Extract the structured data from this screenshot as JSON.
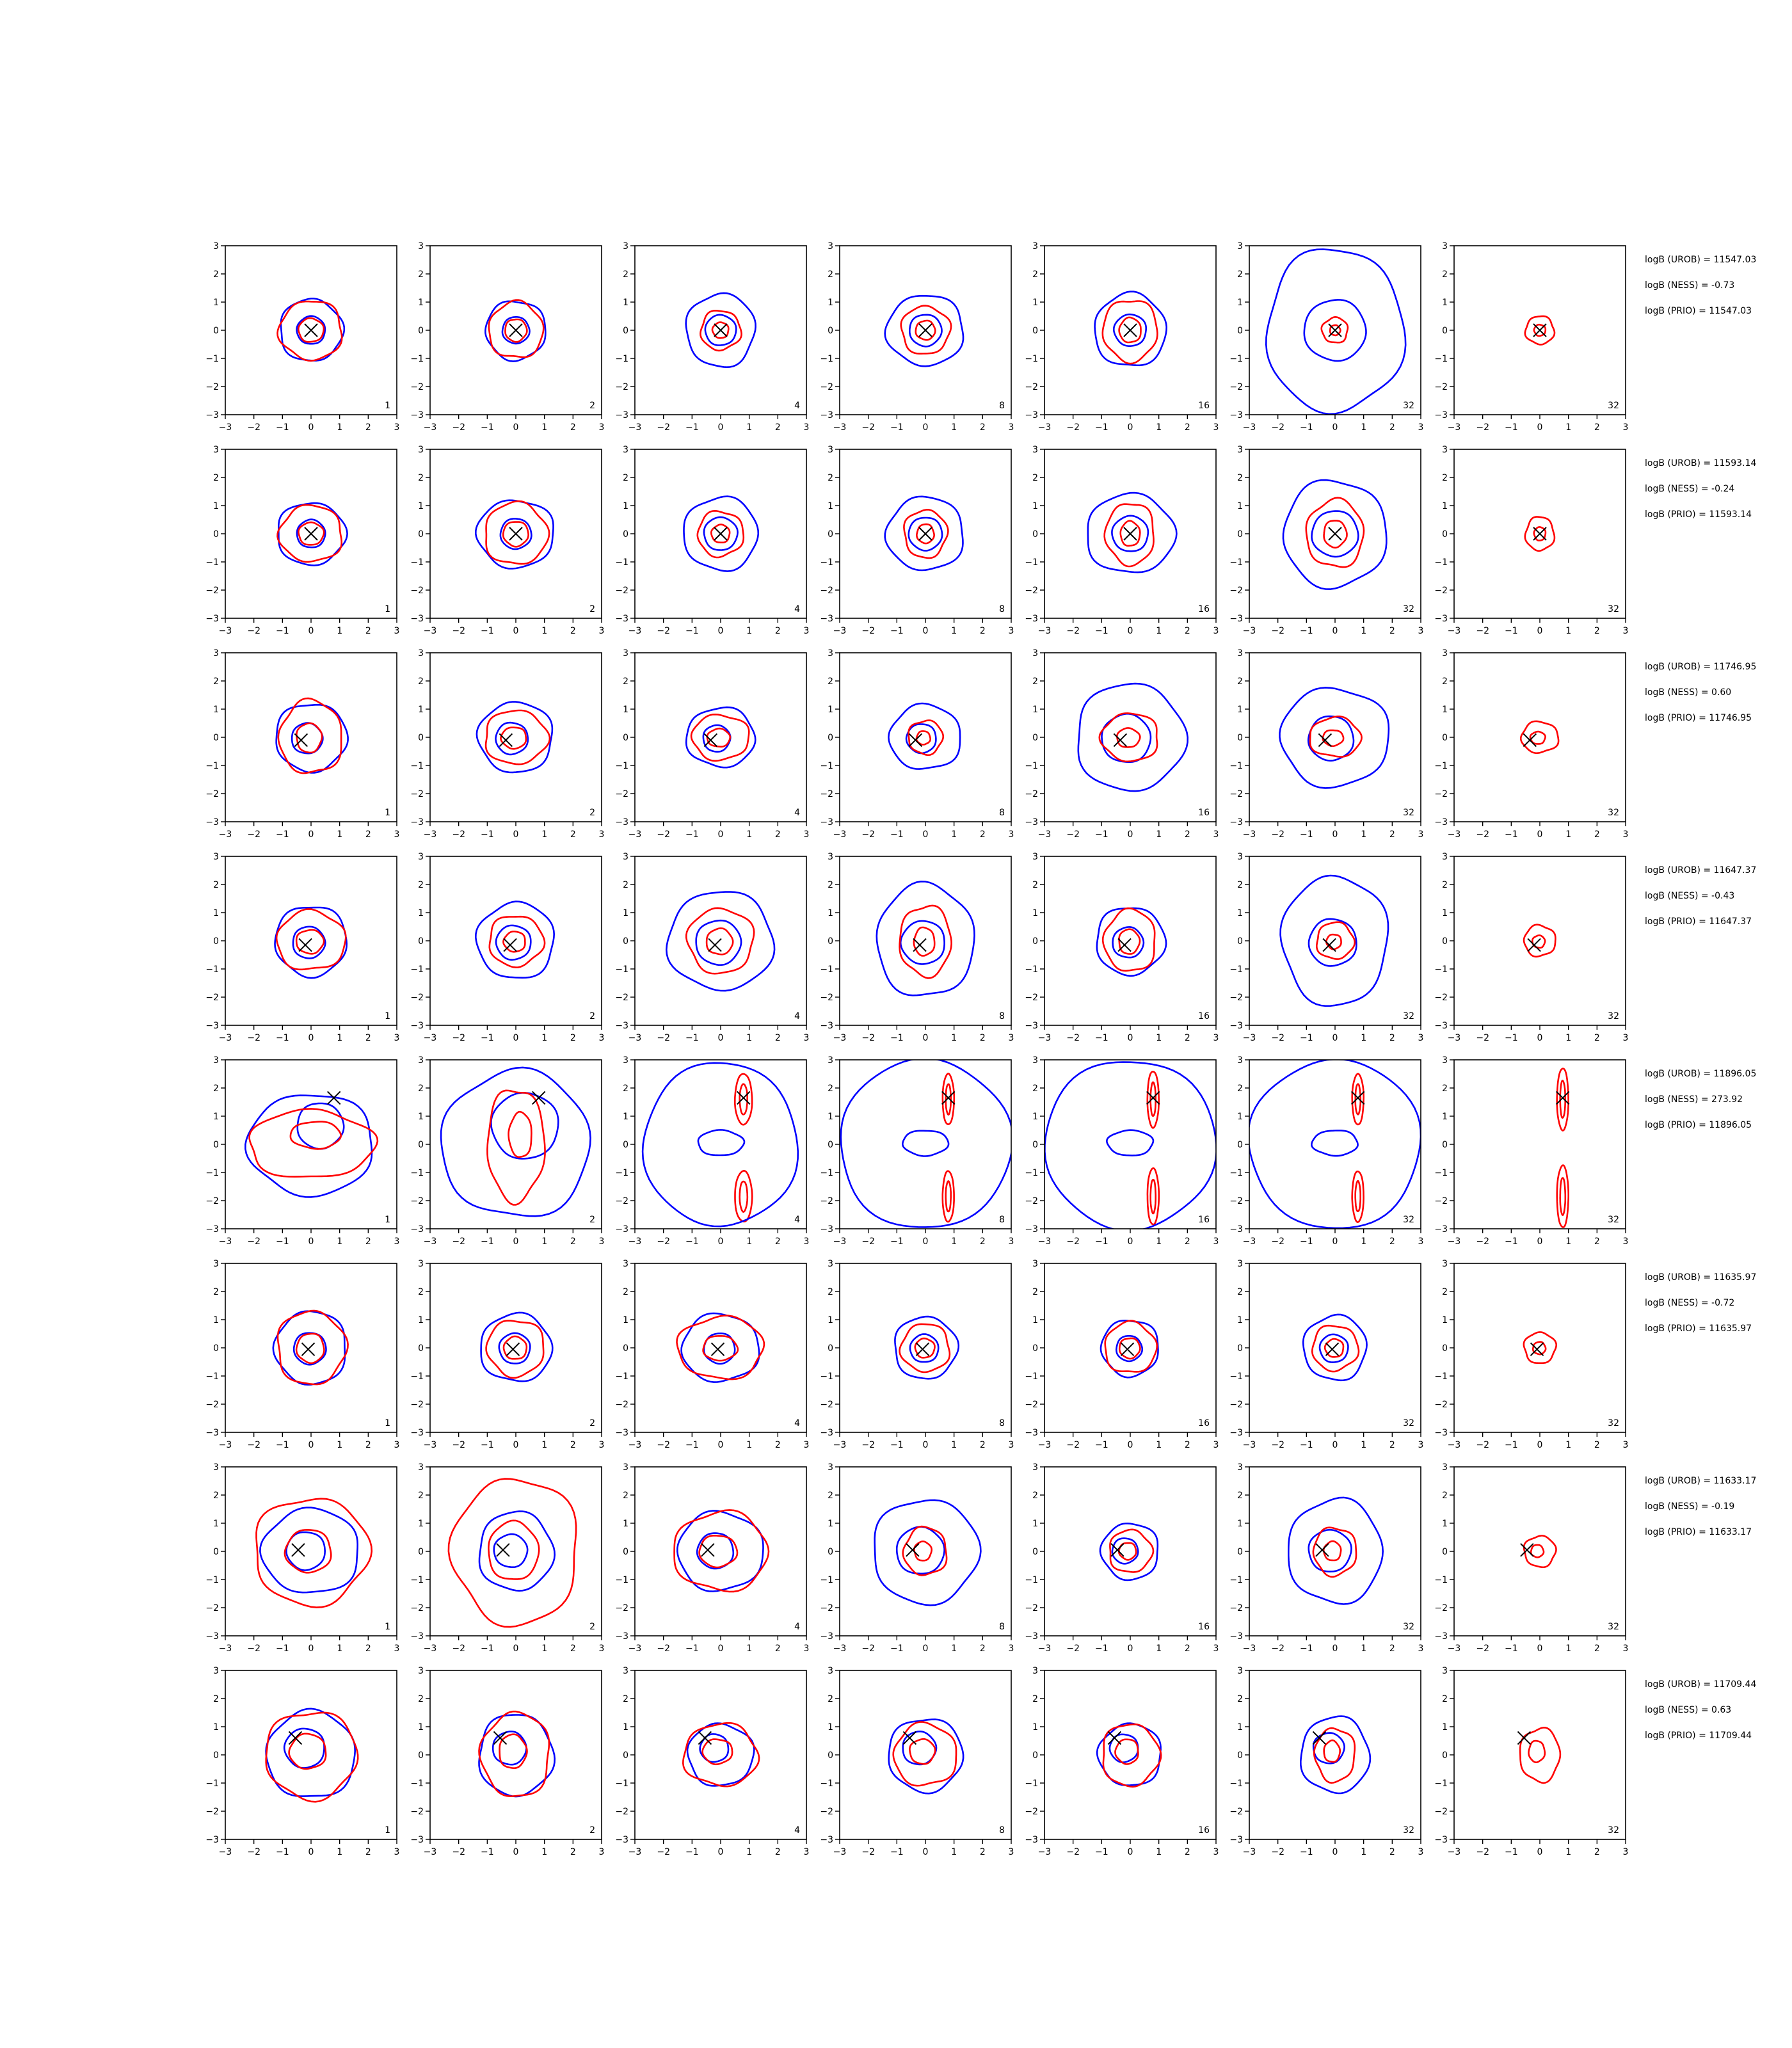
{
  "chart_data": {
    "type": "contour-grid",
    "rows": 8,
    "cols": 7,
    "xlim": [
      -3,
      3
    ],
    "ylim": [
      -3,
      3
    ],
    "ticks": [
      -3,
      -2,
      -1,
      0,
      1,
      2,
      3
    ],
    "panel_labels": [
      "1",
      "2",
      "4",
      "8",
      "16",
      "32",
      "32"
    ],
    "colors": {
      "outer_contour": "#0000ff",
      "inner_contour": "#ff0000",
      "marker": "#000000",
      "axes": "#000000"
    },
    "rows_data": [
      {
        "marker": [
          0,
          0
        ],
        "annotations": [
          "logB (UROB) = 11547.03",
          "logB (NESS) = -0.73",
          "logB (PRIO) = 11547.03"
        ],
        "blue": [
          [
            1.1,
            1.1
          ],
          [
            1.05,
            1.05
          ],
          [
            1.2,
            1.3
          ],
          [
            1.35,
            1.25
          ],
          [
            1.25,
            1.3
          ],
          [
            2.4,
            2.9
          ],
          [
            0,
            0
          ]
        ],
        "red": [
          [
            1.1,
            1.05
          ],
          [
            0.95,
            1.0
          ],
          [
            0.7,
            0.7
          ],
          [
            0.85,
            0.85
          ],
          [
            0.95,
            1.1
          ],
          [
            0.45,
            0.45
          ],
          [
            0.5,
            0.5
          ]
        ]
      },
      {
        "marker": [
          0,
          0
        ],
        "annotations": [
          "logB (UROB) = 11593.14",
          "logB (NESS) = -0.24",
          "logB (PRIO) = 11593.14"
        ],
        "blue": [
          [
            1.2,
            1.1
          ],
          [
            1.35,
            1.2
          ],
          [
            1.3,
            1.3
          ],
          [
            1.35,
            1.3
          ],
          [
            1.55,
            1.4
          ],
          [
            1.8,
            1.9
          ],
          [
            0,
            0
          ]
        ],
        "red": [
          [
            1.1,
            1.0
          ],
          [
            1.1,
            1.1
          ],
          [
            0.8,
            0.8
          ],
          [
            0.75,
            0.85
          ],
          [
            0.85,
            1.1
          ],
          [
            1.0,
            1.2
          ],
          [
            0.5,
            0.6
          ]
        ]
      },
      {
        "marker": [
          -0.35,
          -0.1
        ],
        "annotations": [
          "logB (UROB) = 11746.95",
          "logB (NESS) = 0.60",
          "logB (PRIO) = 11746.95"
        ],
        "blue": [
          [
            1.25,
            1.2
          ],
          [
            1.3,
            1.25
          ],
          [
            1.2,
            1.05
          ],
          [
            1.25,
            1.15
          ],
          [
            1.9,
            1.9
          ],
          [
            1.9,
            1.75
          ],
          [
            0,
            0
          ]
        ],
        "red": [
          [
            1.1,
            1.3
          ],
          [
            1.1,
            0.95
          ],
          [
            1.0,
            0.8
          ],
          [
            0.6,
            0.6
          ],
          [
            1.0,
            0.85
          ],
          [
            0.9,
            0.7
          ],
          [
            0.65,
            0.55
          ]
        ]
      },
      {
        "marker": [
          -0.2,
          -0.15
        ],
        "annotations": [
          "logB (UROB) = 11647.37",
          "logB (NESS) = -0.43",
          "logB (PRIO) = 11647.37"
        ],
        "blue": [
          [
            1.25,
            1.25
          ],
          [
            1.35,
            1.35
          ],
          [
            1.85,
            1.75
          ],
          [
            1.7,
            2.0
          ],
          [
            1.2,
            1.2
          ],
          [
            1.85,
            2.3
          ],
          [
            0,
            0
          ]
        ],
        "red": [
          [
            1.2,
            1.05
          ],
          [
            0.95,
            0.9
          ],
          [
            1.15,
            1.15
          ],
          [
            0.9,
            1.25
          ],
          [
            0.9,
            1.1
          ],
          [
            0.65,
            0.65
          ],
          [
            0.55,
            0.55
          ]
        ]
      },
      {
        "marker": [
          0.8,
          1.65
        ],
        "annotations": [
          "logB (UROB) = 11896.05",
          "logB (NESS) = 273.92",
          "logB (PRIO) = 11896.05"
        ],
        "blue": [
          [
            2.2,
            1.8
          ],
          [
            2.6,
            2.6
          ],
          [
            2.7,
            2.9
          ],
          [
            3.0,
            3.0
          ],
          [
            3.0,
            3.0
          ],
          [
            3.0,
            3.0
          ],
          [
            0,
            0
          ]
        ],
        "red": [
          [
            2.2,
            1.2
          ],
          [
            1.0,
            2.0
          ],
          [
            0.3,
            0.9
          ],
          [
            0.2,
            0.9
          ],
          [
            0.2,
            1.0
          ],
          [
            0.2,
            0.9
          ],
          [
            0.2,
            1.1
          ]
        ]
      },
      {
        "marker": [
          -0.1,
          -0.05
        ],
        "annotations": [
          "logB (UROB) = 11635.97",
          "logB (NESS) = -0.72",
          "logB (PRIO) = 11635.97"
        ],
        "blue": [
          [
            1.25,
            1.3
          ],
          [
            1.25,
            1.2
          ],
          [
            1.35,
            1.2
          ],
          [
            1.1,
            1.1
          ],
          [
            1.0,
            1.0
          ],
          [
            1.1,
            1.15
          ],
          [
            0,
            0
          ]
        ],
        "red": [
          [
            1.2,
            1.3
          ],
          [
            1.0,
            1.0
          ],
          [
            1.5,
            1.1
          ],
          [
            0.85,
            0.85
          ],
          [
            0.9,
            0.9
          ],
          [
            0.8,
            0.8
          ],
          [
            0.55,
            0.55
          ]
        ]
      },
      {
        "marker": [
          -0.45,
          0.05
        ],
        "annotations": [
          "logB (UROB) = 11633.17",
          "logB (NESS) = -0.19",
          "logB (PRIO) = 11633.17"
        ],
        "blue": [
          [
            1.7,
            1.5
          ],
          [
            1.3,
            1.4
          ],
          [
            1.5,
            1.4
          ],
          [
            1.85,
            1.85
          ],
          [
            1.0,
            1.0
          ],
          [
            1.65,
            1.85
          ],
          [
            0,
            0
          ]
        ],
        "red": [
          [
            2.0,
            1.9
          ],
          [
            2.2,
            2.6
          ],
          [
            1.65,
            1.4
          ],
          [
            0.75,
            0.85
          ],
          [
            0.75,
            0.75
          ],
          [
            0.75,
            0.85
          ],
          [
            0.55,
            0.55
          ]
        ]
      },
      {
        "marker": [
          -0.55,
          0.6
        ],
        "annotations": [
          "logB (UROB) = 11709.44",
          "logB (NESS) = 0.63",
          "logB (PRIO) = 11709.44"
        ],
        "blue": [
          [
            1.55,
            1.55
          ],
          [
            1.3,
            1.45
          ],
          [
            1.15,
            1.1
          ],
          [
            1.3,
            1.3
          ],
          [
            1.1,
            1.1
          ],
          [
            1.2,
            1.35
          ],
          [
            0,
            0
          ]
        ],
        "red": [
          [
            1.6,
            1.55
          ],
          [
            1.2,
            1.5
          ],
          [
            1.3,
            1.1
          ],
          [
            1.1,
            1.1
          ],
          [
            1.0,
            1.1
          ],
          [
            0.7,
            0.95
          ],
          [
            0.7,
            0.95
          ]
        ]
      }
    ]
  }
}
